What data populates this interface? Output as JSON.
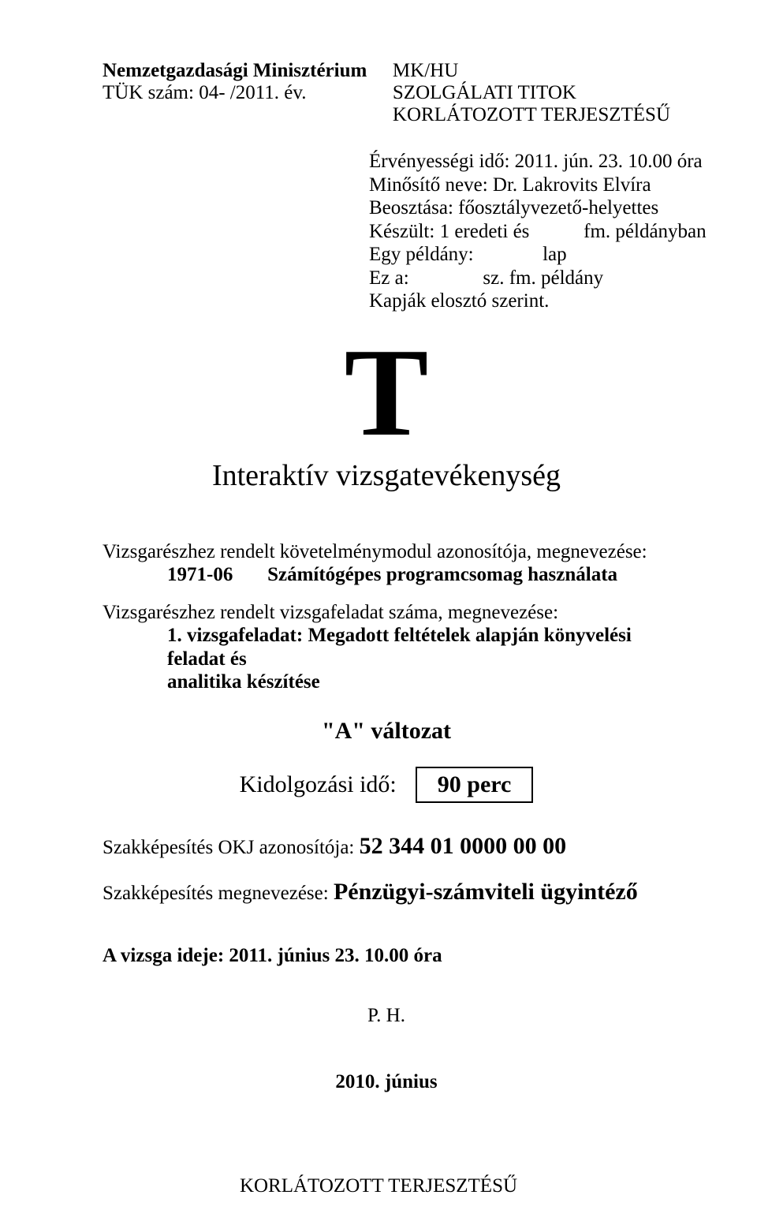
{
  "header": {
    "ministry": "Nemzetgazdasági Minisztérium",
    "tuk_line": "TÜK szám:   04-         /2011. év.",
    "mkhu": "MK/HU",
    "secret": "SZOLGÁLATI TITOK",
    "restricted": "KORLÁTOZOTT TERJESZTÉSŰ"
  },
  "meta": {
    "l1": "Érvényességi idő: 2011. jún. 23. 10.00 óra",
    "l2": "Minősítő neve: Dr. Lakrovits Elvíra",
    "l3": "Beosztása: főosztályvezető-helyettes",
    "l4": "Készült: 1 eredeti és           fm. példányban",
    "l5": "Egy példány:              lap",
    "l6": "Ez a:               sz. fm. példány",
    "l7": "Kapják elosztó szerint."
  },
  "big_t": "T",
  "title": "Interaktív vizsgatevékenység",
  "module": {
    "intro": "Vizsgarészhez rendelt követelménymodul azonosítója, megnevezése:",
    "code": "1971-06",
    "name": "Számítógépes programcsomag használata"
  },
  "task": {
    "intro": "Vizsgarészhez rendelt vizsgafeladat száma, megnevezése:",
    "desc1": "1. vizsgafeladat: Megadott feltételek alapján könyvelési feladat és",
    "desc2": "analitika készítése"
  },
  "variant": "\"A\" változat",
  "timing": {
    "label": "Kidolgozási idő:",
    "value": "90 perc"
  },
  "cert": {
    "okj_label": "Szakképesítés OKJ azonosítója: ",
    "okj_value": "52 344 01 0000 00 00",
    "name_label": "Szakképesítés megnevezése: ",
    "name_value": "Pénzügyi-számviteli ügyintéző"
  },
  "exam_date": "A vizsga ideje: 2011. június 23. 10.00 óra",
  "ph": "P. H.",
  "year": "2010. június",
  "footer": "KORLÁTOZOTT TERJESZTÉSŰ"
}
